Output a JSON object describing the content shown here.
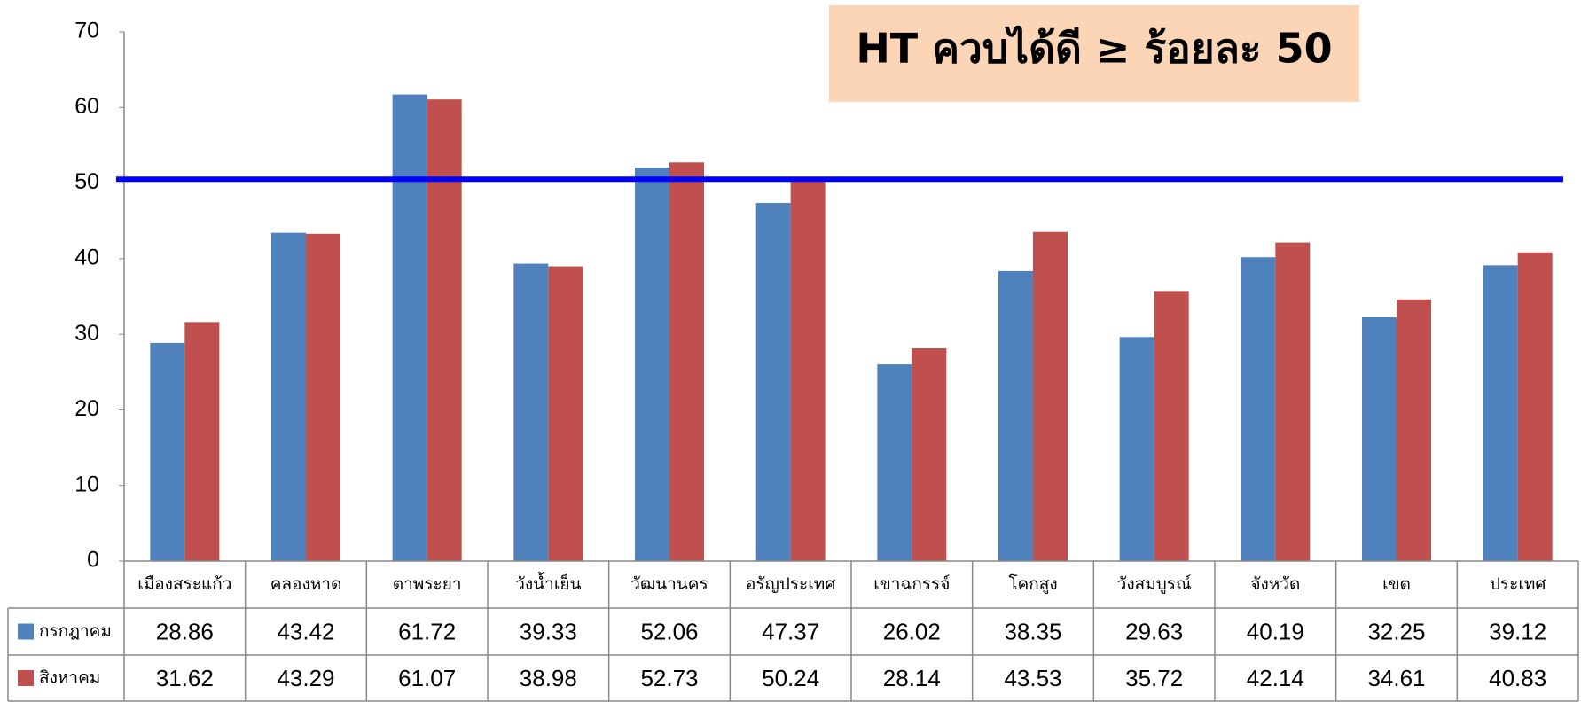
{
  "chart_data": {
    "type": "bar",
    "title": "HT ควบได้ดี ≥ ร้อยละ 50",
    "categories": [
      "เมืองสระแก้ว",
      "คลองหาด",
      "ตาพระยา",
      "วังน้ำเย็น",
      "วัฒนานคร",
      "อรัญประเทศ",
      "เขาฉกรรจ์",
      "โคกสูง",
      "วังสมบูรณ์",
      "จังหวัด",
      "เขต",
      "ประเทศ"
    ],
    "series": [
      {
        "name": "กรกฎาคม",
        "color": "#4f81bd",
        "values": [
          28.86,
          43.42,
          61.72,
          39.33,
          52.06,
          47.37,
          26.02,
          38.35,
          29.63,
          40.19,
          32.25,
          39.12
        ]
      },
      {
        "name": "สิงหาคม",
        "color": "#c0504d",
        "values": [
          31.62,
          43.29,
          61.07,
          38.98,
          52.73,
          50.24,
          28.14,
          43.53,
          35.72,
          42.14,
          34.61,
          40.83
        ]
      }
    ],
    "ylim": [
      0,
      70
    ],
    "yticks": [
      0,
      10,
      20,
      30,
      40,
      50,
      60,
      70
    ],
    "grid": false,
    "reference_line": {
      "value": 50.5,
      "color": "#0000ff"
    }
  }
}
